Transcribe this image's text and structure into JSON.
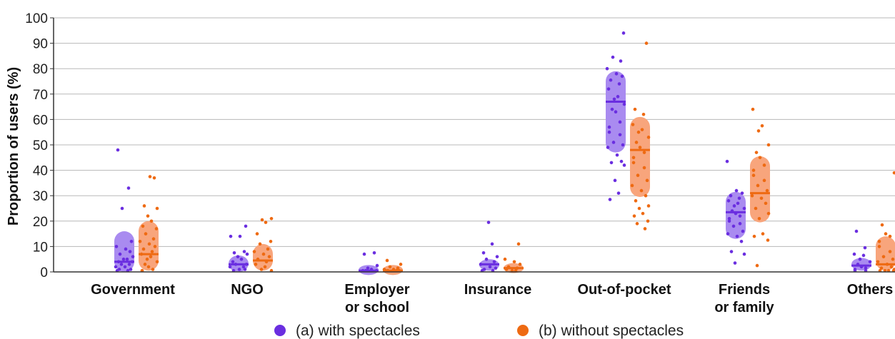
{
  "chart_data": {
    "type": "scatter",
    "ylabel": "Proportion of users (%)",
    "ylim": [
      0,
      100
    ],
    "yticks": [
      0,
      10,
      20,
      30,
      40,
      50,
      60,
      70,
      80,
      90,
      100
    ],
    "grid": true,
    "legend_position": "bottom",
    "categories": [
      [
        "Government"
      ],
      [
        "NGO"
      ],
      [
        "Employer",
        "or school"
      ],
      [
        "Insurance"
      ],
      [
        "Out-of-pocket"
      ],
      [
        "Friends",
        "or family"
      ],
      [
        "Others"
      ]
    ],
    "series": [
      {
        "name": "(a) with spectacles",
        "color": "#6a2ee0",
        "band_color": "#a98bf0",
        "medians": [
          4,
          3,
          0.5,
          3,
          67,
          23.5,
          2.5
        ],
        "iqr": [
          [
            0,
            16
          ],
          [
            0,
            6.5
          ],
          [
            0,
            1.5
          ],
          [
            0.5,
            5
          ],
          [
            47,
            79
          ],
          [
            13,
            31.5
          ],
          [
            0.5,
            5.5
          ]
        ],
        "points": [
          [
            48,
            33,
            25,
            12,
            10,
            9,
            8,
            7,
            6,
            5,
            5,
            4,
            4,
            3,
            3,
            2,
            2,
            1,
            1,
            0.5,
            0.5
          ],
          [
            18,
            14,
            14,
            8,
            7.5,
            7,
            6,
            5,
            4,
            3,
            3,
            2,
            2,
            1,
            1,
            0.5
          ],
          [
            7.5,
            7,
            2.5,
            1.5,
            1,
            0.5,
            0.5,
            0.5
          ],
          [
            19.5,
            11,
            7.5,
            6,
            5,
            4,
            3,
            2,
            1.5,
            1,
            0.5,
            0.5
          ],
          [
            94,
            84.5,
            83,
            80,
            78,
            77,
            75.5,
            74,
            72,
            69,
            68,
            66,
            64,
            63,
            59,
            57,
            55,
            54,
            51,
            50,
            49,
            46,
            43.5,
            43,
            42,
            36,
            31,
            28.5
          ],
          [
            43.5,
            32,
            31,
            30,
            29,
            28,
            27,
            26,
            25,
            24,
            23,
            22,
            21,
            20,
            19,
            18,
            16,
            15,
            14,
            12,
            8,
            7,
            3.5
          ],
          [
            16,
            9.5,
            7,
            6.5,
            5,
            4,
            3,
            2,
            1.5,
            1,
            0.5,
            0.5
          ]
        ]
      },
      {
        "name": "(b) without spectacles",
        "color": "#ee6a12",
        "band_color": "#f8a57c",
        "medians": [
          7,
          4.5,
          0.5,
          1.5,
          48,
          31,
          3
        ],
        "iqr": [
          [
            0.5,
            20
          ],
          [
            0.5,
            11
          ],
          [
            0,
            1.5
          ],
          [
            0,
            3
          ],
          [
            29.5,
            61
          ],
          [
            19.5,
            45.5
          ],
          [
            0.5,
            14
          ]
        ],
        "points": [
          [
            37.5,
            37,
            26,
            25,
            22,
            20,
            18,
            17,
            15,
            13,
            12,
            11,
            10,
            9,
            8,
            7,
            6,
            5,
            4,
            3,
            2,
            1,
            0.5,
            0.5
          ],
          [
            21,
            20.5,
            19.5,
            15,
            12,
            11,
            9,
            8,
            7,
            6,
            5,
            4,
            3,
            2,
            1,
            0.5
          ],
          [
            4.5,
            3,
            2,
            1.5,
            1,
            1,
            0.5,
            0.5,
            0.5,
            0.5
          ],
          [
            11,
            5,
            4,
            3,
            2,
            1.5,
            1,
            0.5,
            0.5
          ],
          [
            90,
            64,
            62,
            58,
            56,
            55,
            53,
            51,
            49,
            47,
            45,
            43,
            41,
            38,
            36,
            34,
            32,
            30,
            28,
            26,
            25,
            23,
            22,
            20,
            19,
            17
          ],
          [
            64,
            57.5,
            55.5,
            50,
            47,
            45,
            42,
            40,
            38,
            36,
            34,
            32,
            30,
            29,
            27,
            25,
            23,
            21,
            15,
            14,
            12.5,
            2.5
          ],
          [
            39,
            18.5,
            15,
            14,
            12,
            10,
            8,
            6,
            5,
            4,
            3,
            2,
            1.5,
            1,
            0.5,
            0.5,
            0.5,
            0.5
          ]
        ]
      }
    ]
  }
}
